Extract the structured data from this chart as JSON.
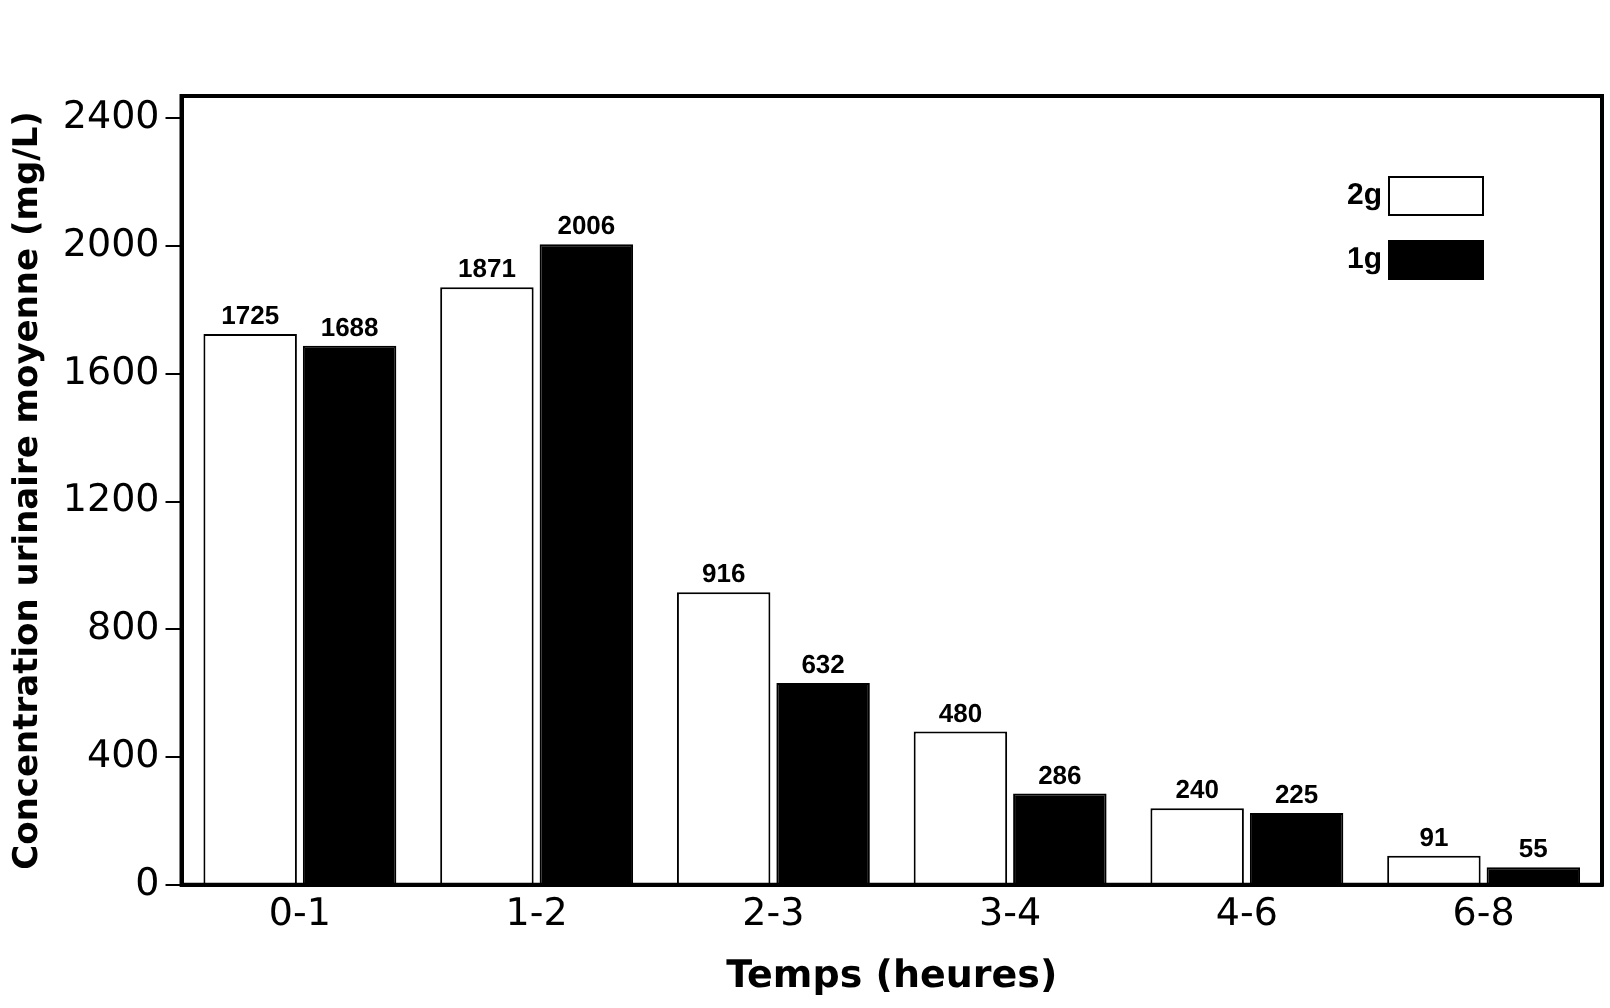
{
  "chart_data": {
    "type": "bar",
    "xlabel": "Temps (heures)",
    "ylabel": "Concentration urinaire moyenne (mg/L)",
    "categories": [
      "0-1",
      "1-2",
      "2-3",
      "3-4",
      "4-6",
      "6-8"
    ],
    "series": [
      {
        "name": "2g",
        "color": "#ffffff",
        "values": [
          1725,
          1871,
          916,
          480,
          240,
          91
        ]
      },
      {
        "name": "1g",
        "color": "#000000",
        "values": [
          1688,
          2006,
          632,
          286,
          225,
          55
        ]
      }
    ],
    "ylim": [
      0,
      2470
    ],
    "yticks": [
      0,
      400,
      800,
      1200,
      1600,
      2000,
      2400
    ],
    "grid": false,
    "legend": "top right",
    "data_labels": true
  }
}
